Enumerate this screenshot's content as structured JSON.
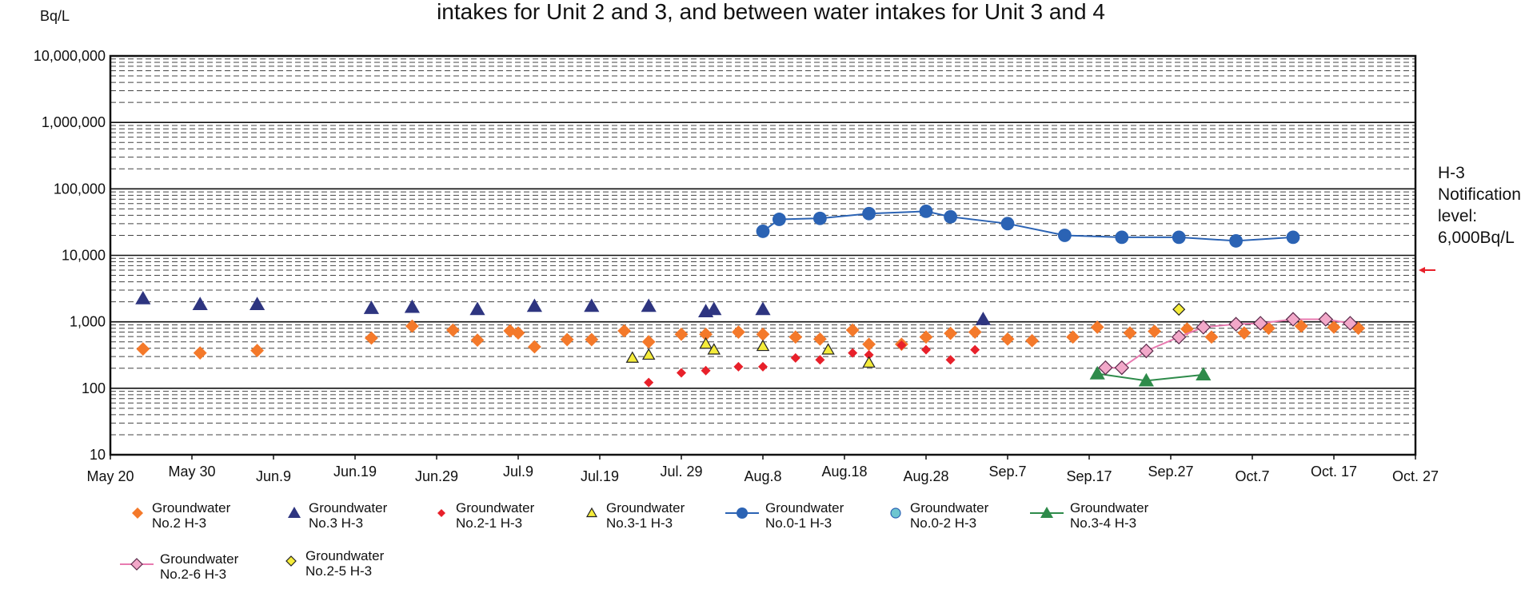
{
  "chart_data": {
    "type": "scatter",
    "title": "intakes for Unit 2 and 3, and between water intakes for Unit 3 and 4",
    "y_unit": "Bq/L",
    "log_y": true,
    "grid": true,
    "minor_grid": true,
    "ylim": [
      10,
      10000000
    ],
    "yticks": [
      {
        "value": 10,
        "label": "10"
      },
      {
        "value": 100,
        "label": "100"
      },
      {
        "value": 1000,
        "label": "1,000"
      },
      {
        "value": 10000,
        "label": "10,000"
      },
      {
        "value": 100000,
        "label": "100,000"
      },
      {
        "value": 1000000,
        "label": "1,000,000"
      },
      {
        "value": 10000000,
        "label": "10,000,000"
      }
    ],
    "xlim": [
      "05-20",
      "10-27"
    ],
    "xticks": [
      {
        "value": "05-20",
        "label": "May 20"
      },
      {
        "value": "05-30",
        "label": "May 30"
      },
      {
        "value": "06-09",
        "label": "Jun.9"
      },
      {
        "value": "06-19",
        "label": "Jun.19"
      },
      {
        "value": "06-29",
        "label": "Jun.29"
      },
      {
        "value": "07-09",
        "label": "Jul.9"
      },
      {
        "value": "07-19",
        "label": "Jul.19"
      },
      {
        "value": "07-29",
        "label": "Jul. 29"
      },
      {
        "value": "08-08",
        "label": "Aug.8"
      },
      {
        "value": "08-18",
        "label": "Aug.18"
      },
      {
        "value": "08-28",
        "label": "Aug.28"
      },
      {
        "value": "09-07",
        "label": "Sep.7"
      },
      {
        "value": "09-17",
        "label": "Sep.17"
      },
      {
        "value": "09-27",
        "label": "Sep.27"
      },
      {
        "value": "10-07",
        "label": "Oct.7"
      },
      {
        "value": "10-17",
        "label": "Oct. 17"
      },
      {
        "value": "10-27",
        "label": "Oct. 27"
      }
    ],
    "notification": {
      "lines": [
        "H-3",
        "Notification",
        "level:",
        "6,000Bq/L"
      ],
      "value": 6000,
      "color": "#e8202a"
    },
    "series": [
      {
        "name": "Groundwater No.2 H-3",
        "color": "#f4792a",
        "marker": "diamond",
        "size": 7,
        "line": false,
        "x": [
          "05-24",
          "05-31",
          "06-07",
          "06-21",
          "06-26",
          "07-01",
          "07-04",
          "07-08",
          "07-09",
          "07-11",
          "07-15",
          "07-18",
          "07-22",
          "07-25",
          "07-29",
          "08-01",
          "08-05",
          "08-08",
          "08-12",
          "08-15",
          "08-19",
          "08-21",
          "08-25",
          "08-28",
          "08-31",
          "09-03",
          "09-07",
          "09-10",
          "09-15",
          "09-18",
          "09-22",
          "09-25",
          "09-29",
          "10-02",
          "10-06",
          "10-09",
          "10-13",
          "10-17",
          "10-20"
        ],
        "values": [
          390,
          340,
          370,
          570,
          860,
          750,
          530,
          730,
          680,
          420,
          540,
          540,
          730,
          500,
          650,
          650,
          700,
          650,
          590,
          550,
          750,
          460,
          460,
          590,
          670,
          700,
          550,
          520,
          590,
          830,
          680,
          720,
          780,
          590,
          680,
          800,
          860,
          830,
          800
        ]
      },
      {
        "name": "Groundwater No.3 H-3",
        "color": "#2e3580",
        "marker": "triangle",
        "size": 8,
        "line": false,
        "x": [
          "05-24",
          "05-31",
          "06-07",
          "06-21",
          "06-26",
          "07-04",
          "07-11",
          "07-18",
          "07-25",
          "08-01",
          "08-02",
          "08-08",
          "09-04"
        ],
        "values": [
          2240,
          1830,
          1830,
          1600,
          1660,
          1540,
          1720,
          1720,
          1720,
          1430,
          1540,
          1540,
          1090
        ]
      },
      {
        "name": "Groundwater No.2-1 H-3",
        "color": "#e8202a",
        "marker": "diamond",
        "size": 5,
        "line": false,
        "x": [
          "07-25",
          "07-29",
          "08-01",
          "08-05",
          "08-08",
          "08-12",
          "08-15",
          "08-19",
          "08-21",
          "08-25",
          "08-28",
          "08-31",
          "09-03"
        ],
        "values": [
          122,
          171,
          184,
          211,
          211,
          286,
          268,
          340,
          318,
          445,
          380,
          268,
          380
        ]
      },
      {
        "name": "Groundwater No.3-1 H-3",
        "color": "#f5ec3a",
        "edgecolor": "#222222",
        "marker": "triangle",
        "size": 6,
        "line": false,
        "x": [
          "07-23",
          "07-25",
          "08-01",
          "08-02",
          "08-08",
          "08-16",
          "08-21"
        ],
        "values": [
          286,
          318,
          465,
          380,
          430,
          380,
          242
        ]
      },
      {
        "name": "Groundwater No.0-1 H-3",
        "color": "#2b63b4",
        "marker": "circle",
        "size": 7,
        "line": true,
        "x": [
          "08-08",
          "08-10",
          "08-15",
          "08-21",
          "08-28",
          "08-31",
          "09-07",
          "09-14",
          "09-21",
          "09-28",
          "10-05",
          "10-12"
        ],
        "values": [
          23000,
          34800,
          36000,
          42500,
          46000,
          38000,
          30000,
          20000,
          18700,
          18700,
          16500,
          18700
        ]
      },
      {
        "name": "Groundwater No.0-2 H-3",
        "color": "#6ec6d0",
        "edgecolor": "#2b63b4",
        "marker": "circle",
        "size": 6,
        "line": false,
        "x": [],
        "values": []
      },
      {
        "name": "Groundwater No.3-4 H-3",
        "color": "#2e8b4a",
        "marker": "triangle",
        "size": 8,
        "line": true,
        "x": [
          "09-18",
          "09-24",
          "10-01"
        ],
        "values": [
          166,
          130,
          160
        ]
      },
      {
        "name": "Groundwater No.2-6 H-3",
        "color": "#f2a8c9",
        "edgecolor": "#5a2a4a",
        "linecolor": "#e87ab0",
        "marker": "diamond",
        "size": 7,
        "line": true,
        "x": [
          "09-19",
          "09-21",
          "09-24",
          "09-28",
          "10-01",
          "10-05",
          "10-08",
          "10-12",
          "10-16",
          "10-19"
        ],
        "values": [
          204,
          204,
          365,
          590,
          830,
          920,
          950,
          1090,
          1090,
          950
        ]
      },
      {
        "name": "Groundwater No.2-5 H-3",
        "color": "#f5ec3a",
        "edgecolor": "#222222",
        "marker": "diamond",
        "size": 6,
        "line": false,
        "x": [
          "09-28"
        ],
        "values": [
          1540
        ]
      }
    ]
  }
}
